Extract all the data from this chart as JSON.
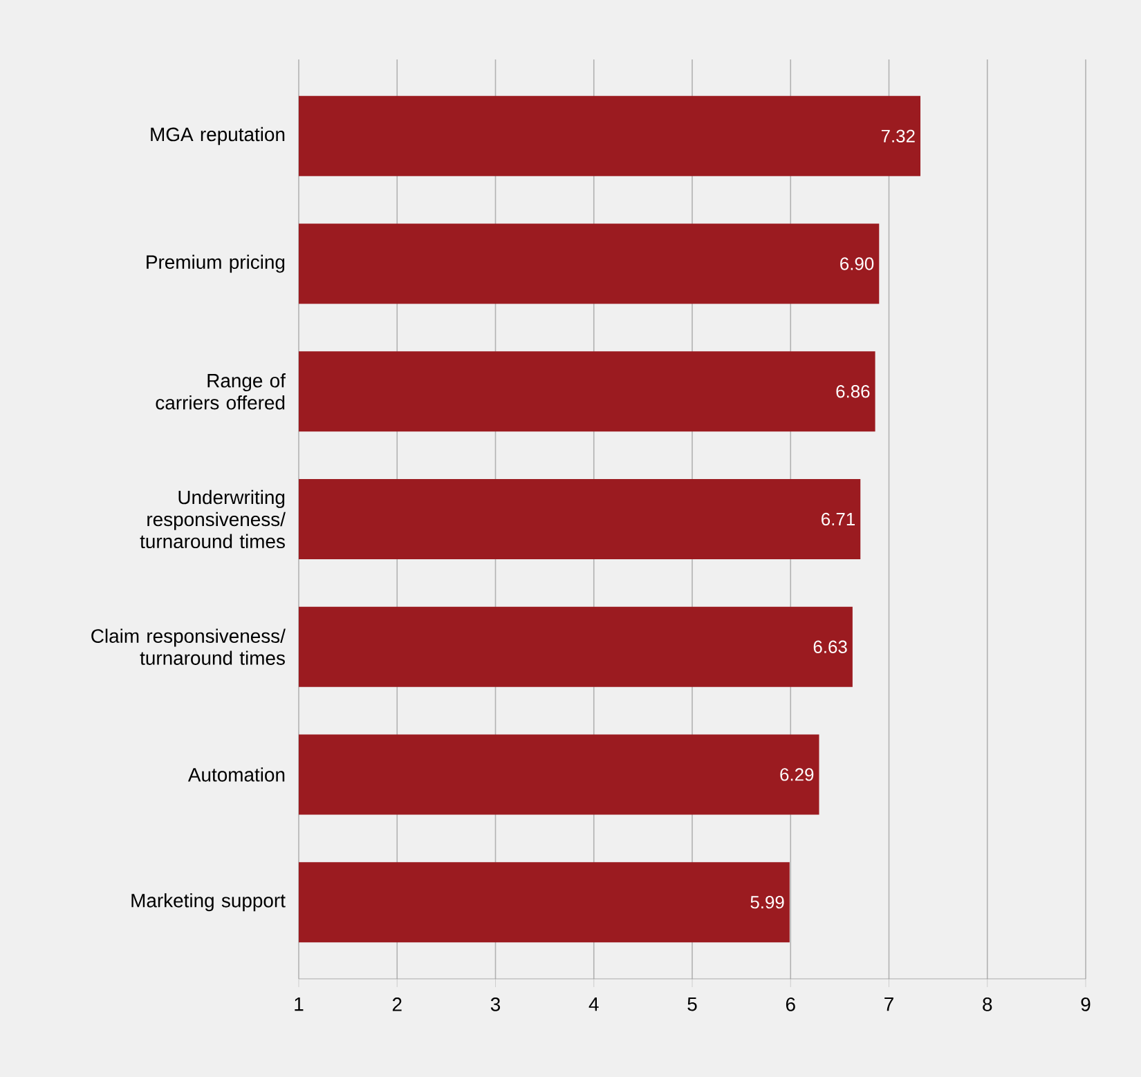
{
  "chart_data": {
    "type": "bar",
    "orientation": "horizontal",
    "categories": [
      "MGA reputation",
      "Premium pricing",
      "Range of carriers offered",
      "Underwriting responsiveness/ turnaround times",
      "Claim responsiveness/ turnaround times",
      "Automation",
      "Marketing support"
    ],
    "values": [
      7.32,
      6.9,
      6.86,
      6.71,
      6.63,
      6.29,
      5.99
    ],
    "value_labels": [
      "7.32",
      "6.90",
      "6.86",
      "6.71",
      "6.63",
      "6.29",
      "5.99"
    ],
    "color": "#9b1b20",
    "xlim": [
      1,
      9
    ],
    "xticks": [
      1,
      2,
      3,
      4,
      5,
      6,
      7,
      8,
      9
    ],
    "grid": "x"
  }
}
